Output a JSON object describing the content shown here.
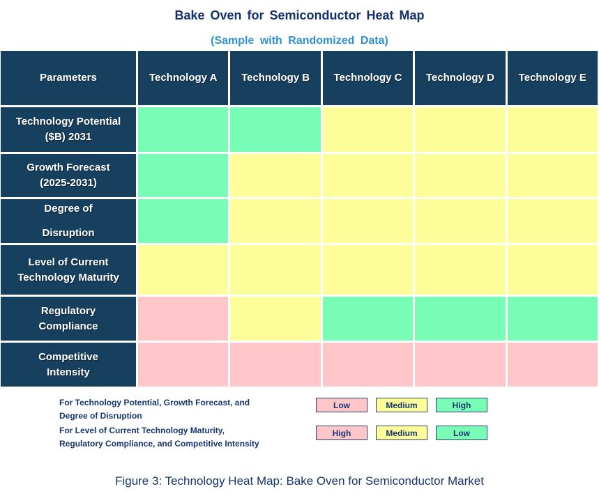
{
  "title": "Bake Oven for Semiconductor Heat Map",
  "subtitle": "(Sample with Randomized Data)",
  "caption": "Figure 3: Technology Heat Map: Bake Oven for Semiconductor Market",
  "colors": {
    "header_bg": "#173f5e",
    "title_navy": "#14306b",
    "subtitle_blue": "#2e90d6",
    "text_navy": "#17356e",
    "grid_white": "#ffffff",
    "green": "#79fcb5",
    "yellow": "#fdfd99",
    "pink": "#ffc6c9"
  },
  "table": {
    "corner_header": "Parameters",
    "column_headers": [
      "Technology A",
      "Technology B",
      "Technology C",
      "Technology D",
      "Technology E"
    ],
    "cell_color_map": {
      "green": "#79fcb5",
      "yellow": "#fdfd99",
      "pink": "#ffc6c9"
    },
    "rows": [
      {
        "label": "Technology Potential\n($B) 2031",
        "cells": [
          "green",
          "green",
          "yellow",
          "yellow",
          "yellow"
        ],
        "ratings": [
          "High",
          "High",
          "Medium",
          "Medium",
          "Medium"
        ]
      },
      {
        "label": "Growth Forecast\n(2025-2031)",
        "cells": [
          "green",
          "yellow",
          "yellow",
          "yellow",
          "yellow"
        ],
        "ratings": [
          "High",
          "Medium",
          "Medium",
          "Medium",
          "Medium"
        ]
      },
      {
        "label": "Degree of\nDisruption",
        "cells": [
          "green",
          "yellow",
          "yellow",
          "yellow",
          "yellow"
        ],
        "ratings": [
          "High",
          "Medium",
          "Medium",
          "Medium",
          "Medium"
        ]
      },
      {
        "label": "Level of Current\nTechnology Maturity",
        "cells": [
          "yellow",
          "yellow",
          "yellow",
          "yellow",
          "yellow"
        ],
        "ratings": [
          "Medium",
          "Medium",
          "Medium",
          "Medium",
          "Medium"
        ]
      },
      {
        "label": "Regulatory\nCompliance",
        "cells": [
          "pink",
          "yellow",
          "green",
          "green",
          "green"
        ],
        "ratings": [
          "High",
          "Medium",
          "Low",
          "Low",
          "Low"
        ]
      },
      {
        "label": "Competitive\nIntensity",
        "cells": [
          "pink",
          "pink",
          "pink",
          "pink",
          "pink"
        ],
        "ratings": [
          "High",
          "High",
          "High",
          "High",
          "High"
        ]
      }
    ]
  },
  "legend": {
    "group1": {
      "text": "For Technology Potential, Growth Forecast, and\nDegree of Disruption",
      "boxes": [
        {
          "label": "Low",
          "color": "pink"
        },
        {
          "label": "Medium",
          "color": "yellow"
        },
        {
          "label": "High",
          "color": "green"
        }
      ]
    },
    "group2": {
      "text": "For Level of Current Technology Maturity,\nRegulatory Compliance, and Competitive Intensity",
      "boxes": [
        {
          "label": "High",
          "color": "pink"
        },
        {
          "label": "Medium",
          "color": "yellow"
        },
        {
          "label": "Low",
          "color": "green"
        }
      ]
    }
  },
  "chart_data": {
    "type": "heatmap",
    "title": "Bake Oven for Semiconductor Heat Map",
    "subtitle": "(Sample with Randomized Data)",
    "caption": "Figure 3: Technology Heat Map: Bake Oven for Semiconductor Market",
    "columns": [
      "Technology A",
      "Technology B",
      "Technology C",
      "Technology D",
      "Technology E"
    ],
    "rows": [
      "Technology Potential ($B) 2031",
      "Growth Forecast (2025-2031)",
      "Degree of Disruption",
      "Level of Current Technology Maturity",
      "Regulatory Compliance",
      "Competitive Intensity"
    ],
    "values": [
      [
        "High",
        "High",
        "Medium",
        "Medium",
        "Medium"
      ],
      [
        "High",
        "Medium",
        "Medium",
        "Medium",
        "Medium"
      ],
      [
        "High",
        "Medium",
        "Medium",
        "Medium",
        "Medium"
      ],
      [
        "Medium",
        "Medium",
        "Medium",
        "Medium",
        "Medium"
      ],
      [
        "High",
        "Medium",
        "Low",
        "Low",
        "Low"
      ],
      [
        "High",
        "High",
        "High",
        "High",
        "High"
      ]
    ],
    "cell_colors": [
      [
        "green",
        "green",
        "yellow",
        "yellow",
        "yellow"
      ],
      [
        "green",
        "yellow",
        "yellow",
        "yellow",
        "yellow"
      ],
      [
        "green",
        "yellow",
        "yellow",
        "yellow",
        "yellow"
      ],
      [
        "yellow",
        "yellow",
        "yellow",
        "yellow",
        "yellow"
      ],
      [
        "pink",
        "yellow",
        "green",
        "green",
        "green"
      ],
      [
        "pink",
        "pink",
        "pink",
        "pink",
        "pink"
      ]
    ],
    "color_scales": {
      "for_potential_growth_disruption": {
        "Low": "pink",
        "Medium": "yellow",
        "High": "green"
      },
      "for_maturity_regulatory_competitive": {
        "High": "pink",
        "Medium": "yellow",
        "Low": "green"
      }
    },
    "legend_position": "bottom-left",
    "grid": true
  }
}
